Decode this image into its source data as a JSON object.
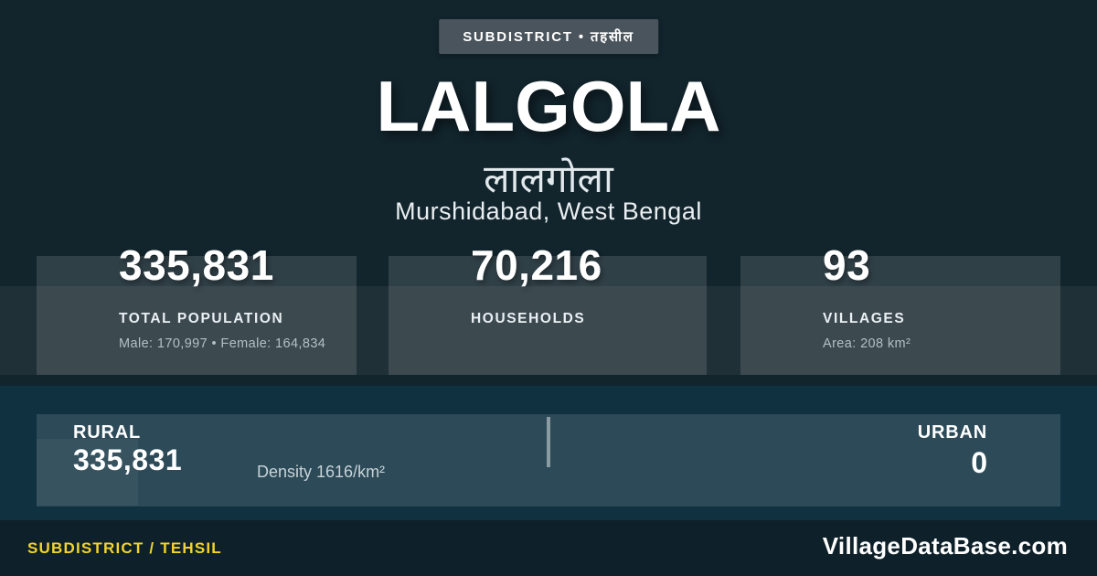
{
  "colors": {
    "background": "#12242c",
    "band_teal": "#0f3140",
    "badge_bg": "#4a545c",
    "accent_yellow": "#f3d32b",
    "text_primary": "#ffffff",
    "text_muted": "#b3bfc7"
  },
  "badge": {
    "label": "SUBDISTRICT • तहसील"
  },
  "header": {
    "title": "LALGOLA",
    "title_native": "लालगोला",
    "location": "Murshidabad, West Bengal"
  },
  "stats": [
    {
      "value": "335,831",
      "label": "TOTAL POPULATION",
      "detail": "Male: 170,997 • Female: 164,834"
    },
    {
      "value": "70,216",
      "label": "HOUSEHOLDS",
      "detail": ""
    },
    {
      "value": "93",
      "label": "VILLAGES",
      "detail": "Area: 208 km²"
    }
  ],
  "rural_urban": {
    "rural_label": "RURAL",
    "rural_value": "335,831",
    "density": "Density 1616/km²",
    "urban_label": "URBAN",
    "urban_value": "0"
  },
  "footer": {
    "left": "SUBDISTRICT / TEHSIL",
    "right": "VillageDataBase.com"
  }
}
